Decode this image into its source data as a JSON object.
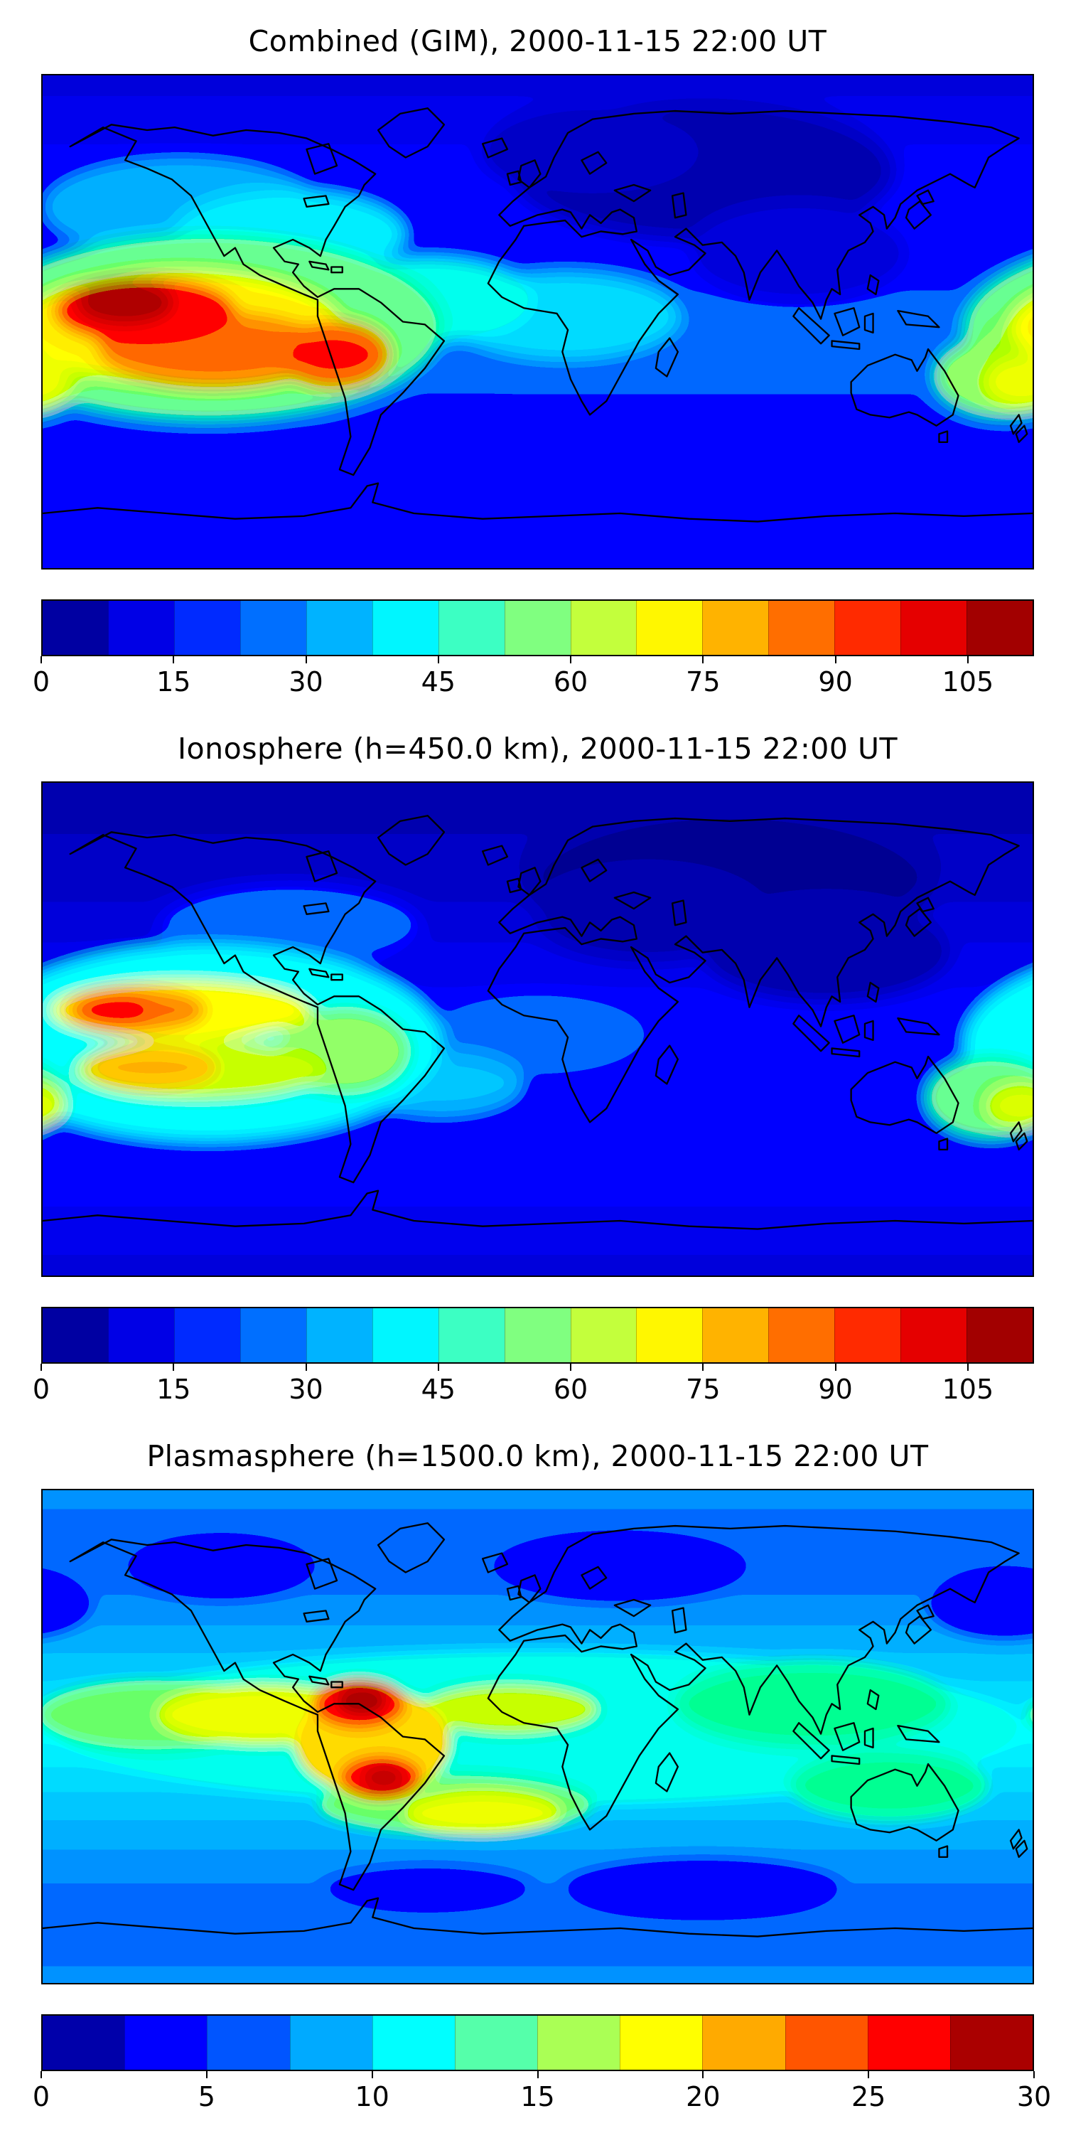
{
  "figure": {
    "background": "#ffffff",
    "text_color": "#000000",
    "colormap_name": "jet"
  },
  "chart_data": [
    {
      "type": "heatmap",
      "title": "Combined (GIM), 2000-11-15 22:00 UT",
      "layer": "Combined (GIM)",
      "timestamp": "2000-11-15 22:00 UT",
      "projection": "equirectangular",
      "lon_range": [
        -180,
        180
      ],
      "lat_range": [
        -90,
        90
      ],
      "colormap": "jet",
      "colorbar": {
        "vmin": 0,
        "vmax": 112.5,
        "ticks": [
          0,
          15,
          30,
          45,
          60,
          75,
          90,
          105
        ],
        "segments": 15,
        "orientation": "horizontal"
      },
      "field_summary": "Peak TEC >105 over eastern equatorial Pacific near subsolar point (~150W), extending orange/red toward South America; secondary enhancement ~60-70 at the western-Pacific map edges; minimum <10 over night-side northern Eurasia.",
      "lat_profile": [
        {
          "lat": 90,
          "v": 10
        },
        {
          "lat": 60,
          "v": 13
        },
        {
          "lat": 35,
          "v": 18
        },
        {
          "lat": 15,
          "v": 24
        },
        {
          "lat": 0,
          "v": 28
        },
        {
          "lat": -20,
          "v": 26
        },
        {
          "lat": -45,
          "v": 22
        },
        {
          "lat": -70,
          "v": 16
        },
        {
          "lat": -90,
          "v": 13
        }
      ],
      "blobs": [
        {
          "lon": 60,
          "lat": 55,
          "rlon": 70,
          "rlat": 26,
          "v": 6
        },
        {
          "lon": 20,
          "lat": 62,
          "rlon": 40,
          "rlat": 16,
          "v": 7
        },
        {
          "lon": 95,
          "lat": 25,
          "rlon": 40,
          "rlat": 18,
          "v": 10
        },
        {
          "lon": -30,
          "lat": -45,
          "rlon": 55,
          "rlat": 16,
          "v": 24
        },
        {
          "lon": -130,
          "lat": 42,
          "rlon": 50,
          "rlat": 18,
          "v": 34
        },
        {
          "lon": -90,
          "lat": 32,
          "rlon": 42,
          "rlat": 16,
          "v": 40
        },
        {
          "lon": 10,
          "lat": 2,
          "rlon": 42,
          "rlat": 16,
          "v": 38
        },
        {
          "lon": -40,
          "lat": 8,
          "rlon": 38,
          "rlat": 15,
          "v": 45
        },
        {
          "lon": -120,
          "lat": -2,
          "rlon": 85,
          "rlat": 34,
          "v": 55
        },
        {
          "lon": 170,
          "lat": -20,
          "rlon": 26,
          "rlat": 15,
          "v": 58
        },
        {
          "lon": -175,
          "lat": -10,
          "rlon": 22,
          "rlat": 13,
          "v": 60
        },
        {
          "lon": 176,
          "lat": -22,
          "rlon": 14,
          "rlat": 9,
          "v": 68
        },
        {
          "lon": -130,
          "lat": -2,
          "rlon": 58,
          "rlat": 20,
          "v": 72
        },
        {
          "lon": -118,
          "lat": -10,
          "rlon": 42,
          "rlat": 14,
          "v": 84
        },
        {
          "lon": -74,
          "lat": -12,
          "rlon": 20,
          "rlat": 12,
          "v": 88
        },
        {
          "lon": -143,
          "lat": 4,
          "rlon": 33,
          "rlat": 12,
          "v": 96
        },
        {
          "lon": -150,
          "lat": 7,
          "rlon": 18,
          "rlat": 8,
          "v": 108
        }
      ]
    },
    {
      "type": "heatmap",
      "title": "Ionosphere  (h=450.0 km), 2000-11-15 22:00 UT",
      "layer": "Ionosphere (h=450.0 km)",
      "timestamp": "2000-11-15 22:00 UT",
      "projection": "equirectangular",
      "lon_range": [
        -180,
        180
      ],
      "lat_range": [
        -90,
        90
      ],
      "colormap": "jet",
      "colorbar": {
        "vmin": 0,
        "vmax": 112.5,
        "ticks": [
          0,
          15,
          30,
          45,
          60,
          75,
          90,
          105
        ],
        "segments": 15,
        "orientation": "horizontal"
      },
      "field_summary": "Two equatorial-anomaly orange bands (~80-90) over the eastern Pacific near 150W at +/-12 latitude; yellow enhancement near the western-Pacific map edge; very low values (<8, dark blue) over night-side Eurasia and the Arctic.",
      "lat_profile": [
        {
          "lat": 90,
          "v": 6
        },
        {
          "lat": 60,
          "v": 7
        },
        {
          "lat": 30,
          "v": 11
        },
        {
          "lat": 0,
          "v": 18
        },
        {
          "lat": -30,
          "v": 16
        },
        {
          "lat": -60,
          "v": 13
        },
        {
          "lat": -90,
          "v": 10
        }
      ],
      "blobs": [
        {
          "lon": 70,
          "lat": 55,
          "rlon": 75,
          "rlat": 28,
          "v": 4
        },
        {
          "lon": 105,
          "lat": 28,
          "rlon": 45,
          "rlat": 18,
          "v": 5
        },
        {
          "lon": 40,
          "lat": 40,
          "rlon": 40,
          "rlat": 16,
          "v": 6
        },
        {
          "lon": -90,
          "lat": 38,
          "rlon": 48,
          "rlat": 16,
          "v": 26
        },
        {
          "lon": 0,
          "lat": -2,
          "rlon": 40,
          "rlat": 15,
          "v": 28
        },
        {
          "lon": -35,
          "lat": -20,
          "rlon": 30,
          "rlat": 12,
          "v": 35
        },
        {
          "lon": -120,
          "lat": -5,
          "rlon": 85,
          "rlat": 36,
          "v": 42
        },
        {
          "lon": 165,
          "lat": -25,
          "rlon": 24,
          "rlat": 15,
          "v": 55
        },
        {
          "lon": 176,
          "lat": -28,
          "rlon": 13,
          "rlat": 8,
          "v": 66
        },
        {
          "lon": -70,
          "lat": -8,
          "rlon": 24,
          "rlat": 16,
          "v": 58
        },
        {
          "lon": -130,
          "lat": 7,
          "rlon": 48,
          "rlat": 11,
          "v": 70
        },
        {
          "lon": -123,
          "lat": -15,
          "rlon": 46,
          "rlat": 11,
          "v": 64
        },
        {
          "lon": -146,
          "lat": 7,
          "rlon": 26,
          "rlat": 8,
          "v": 84
        },
        {
          "lon": -140,
          "lat": -14,
          "rlon": 24,
          "rlat": 8,
          "v": 78
        },
        {
          "lon": -154,
          "lat": 7,
          "rlon": 13,
          "rlat": 6,
          "v": 92
        }
      ]
    },
    {
      "type": "heatmap",
      "title": "Plasmasphere (h=1500.0 km), 2000-11-15 22:00 UT",
      "layer": "Plasmasphere (h=1500.0 km)",
      "timestamp": "2000-11-15 22:00 UT",
      "projection": "equirectangular",
      "lon_range": [
        -180,
        180
      ],
      "lat_range": [
        -90,
        90
      ],
      "colormap": "jet",
      "colorbar": {
        "vmin": 0,
        "vmax": 30,
        "ticks": [
          0,
          5,
          10,
          15,
          20,
          25,
          30
        ],
        "segments": 12,
        "orientation": "horizontal"
      },
      "field_summary": "Global cyan/green equatorial belt (~10-15) with two red hotspots near 30 reaching ~28-30 over the Caribbean (~65W, 12N) and central South America (~56W, 15S); dark-blue minima (<5) over high-latitude Eurasia, northern Canada and the southern Indian Ocean.",
      "lat_profile": [
        {
          "lat": 90,
          "v": 8
        },
        {
          "lat": 62,
          "v": 7
        },
        {
          "lat": 35,
          "v": 9
        },
        {
          "lat": 0,
          "v": 11
        },
        {
          "lat": -35,
          "v": 9
        },
        {
          "lat": -65,
          "v": 7
        },
        {
          "lat": -90,
          "v": 8
        }
      ],
      "blobs": [
        {
          "lon": 30,
          "lat": 62,
          "rlon": 45,
          "rlat": 13,
          "v": 4
        },
        {
          "lon": -115,
          "lat": 62,
          "rlon": 33,
          "rlat": 12,
          "v": 4
        },
        {
          "lon": 60,
          "lat": -55,
          "rlon": 50,
          "rlat": 11,
          "v": 5
        },
        {
          "lon": 170,
          "lat": 48,
          "rlon": 28,
          "rlat": 13,
          "v": 5
        },
        {
          "lon": -40,
          "lat": -55,
          "rlon": 38,
          "rlat": 9,
          "v": 6
        },
        {
          "lon": 0,
          "lat": 3,
          "rlon": 175,
          "rlat": 28,
          "v": 12
        },
        {
          "lon": 100,
          "lat": 12,
          "rlon": 50,
          "rlat": 16,
          "v": 14
        },
        {
          "lon": 128,
          "lat": -18,
          "rlon": 36,
          "rlat": 13,
          "v": 14
        },
        {
          "lon": -140,
          "lat": 8,
          "rlon": 42,
          "rlat": 13,
          "v": 15
        },
        {
          "lon": -30,
          "lat": -25,
          "rlon": 50,
          "rlat": 11,
          "v": 15
        },
        {
          "lon": -20,
          "lat": -28,
          "rlon": 28,
          "rlat": 8,
          "v": 18
        },
        {
          "lon": -100,
          "lat": 8,
          "rlon": 38,
          "rlat": 11,
          "v": 18
        },
        {
          "lon": -10,
          "lat": 10,
          "rlon": 32,
          "rlat": 9,
          "v": 17
        },
        {
          "lon": -60,
          "lat": -2,
          "rlon": 28,
          "rlat": 19,
          "v": 20
        },
        {
          "lon": -65,
          "lat": 12,
          "rlon": 17,
          "rlat": 9,
          "v": 24
        },
        {
          "lon": -57,
          "lat": -15,
          "rlon": 15,
          "rlat": 8,
          "v": 24
        },
        {
          "lon": -64,
          "lat": 13,
          "rlon": 9,
          "rlat": 5,
          "v": 29
        },
        {
          "lon": -56,
          "lat": -15,
          "rlon": 8,
          "rlat": 5,
          "v": 28
        }
      ]
    }
  ]
}
